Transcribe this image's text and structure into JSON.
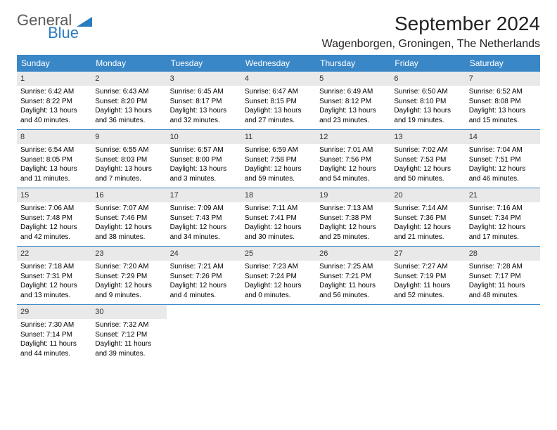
{
  "brand": {
    "text1": "General",
    "text2": "Blue"
  },
  "title": {
    "month": "September 2024",
    "location": "Wagenborgen, Groningen, The Netherlands"
  },
  "colors": {
    "header_bg": "#3a87c7",
    "header_fg": "#ffffff",
    "daynum_bg": "#e9e9e9",
    "rule": "#3a87c7",
    "logo_gray": "#5a5a5a",
    "logo_blue": "#2a7bbf"
  },
  "day_headers": [
    "Sunday",
    "Monday",
    "Tuesday",
    "Wednesday",
    "Thursday",
    "Friday",
    "Saturday"
  ],
  "weeks": [
    [
      {
        "n": "1",
        "sr": "Sunrise: 6:42 AM",
        "ss": "Sunset: 8:22 PM",
        "d1": "Daylight: 13 hours",
        "d2": "and 40 minutes."
      },
      {
        "n": "2",
        "sr": "Sunrise: 6:43 AM",
        "ss": "Sunset: 8:20 PM",
        "d1": "Daylight: 13 hours",
        "d2": "and 36 minutes."
      },
      {
        "n": "3",
        "sr": "Sunrise: 6:45 AM",
        "ss": "Sunset: 8:17 PM",
        "d1": "Daylight: 13 hours",
        "d2": "and 32 minutes."
      },
      {
        "n": "4",
        "sr": "Sunrise: 6:47 AM",
        "ss": "Sunset: 8:15 PM",
        "d1": "Daylight: 13 hours",
        "d2": "and 27 minutes."
      },
      {
        "n": "5",
        "sr": "Sunrise: 6:49 AM",
        "ss": "Sunset: 8:12 PM",
        "d1": "Daylight: 13 hours",
        "d2": "and 23 minutes."
      },
      {
        "n": "6",
        "sr": "Sunrise: 6:50 AM",
        "ss": "Sunset: 8:10 PM",
        "d1": "Daylight: 13 hours",
        "d2": "and 19 minutes."
      },
      {
        "n": "7",
        "sr": "Sunrise: 6:52 AM",
        "ss": "Sunset: 8:08 PM",
        "d1": "Daylight: 13 hours",
        "d2": "and 15 minutes."
      }
    ],
    [
      {
        "n": "8",
        "sr": "Sunrise: 6:54 AM",
        "ss": "Sunset: 8:05 PM",
        "d1": "Daylight: 13 hours",
        "d2": "and 11 minutes."
      },
      {
        "n": "9",
        "sr": "Sunrise: 6:55 AM",
        "ss": "Sunset: 8:03 PM",
        "d1": "Daylight: 13 hours",
        "d2": "and 7 minutes."
      },
      {
        "n": "10",
        "sr": "Sunrise: 6:57 AM",
        "ss": "Sunset: 8:00 PM",
        "d1": "Daylight: 13 hours",
        "d2": "and 3 minutes."
      },
      {
        "n": "11",
        "sr": "Sunrise: 6:59 AM",
        "ss": "Sunset: 7:58 PM",
        "d1": "Daylight: 12 hours",
        "d2": "and 59 minutes."
      },
      {
        "n": "12",
        "sr": "Sunrise: 7:01 AM",
        "ss": "Sunset: 7:56 PM",
        "d1": "Daylight: 12 hours",
        "d2": "and 54 minutes."
      },
      {
        "n": "13",
        "sr": "Sunrise: 7:02 AM",
        "ss": "Sunset: 7:53 PM",
        "d1": "Daylight: 12 hours",
        "d2": "and 50 minutes."
      },
      {
        "n": "14",
        "sr": "Sunrise: 7:04 AM",
        "ss": "Sunset: 7:51 PM",
        "d1": "Daylight: 12 hours",
        "d2": "and 46 minutes."
      }
    ],
    [
      {
        "n": "15",
        "sr": "Sunrise: 7:06 AM",
        "ss": "Sunset: 7:48 PM",
        "d1": "Daylight: 12 hours",
        "d2": "and 42 minutes."
      },
      {
        "n": "16",
        "sr": "Sunrise: 7:07 AM",
        "ss": "Sunset: 7:46 PM",
        "d1": "Daylight: 12 hours",
        "d2": "and 38 minutes."
      },
      {
        "n": "17",
        "sr": "Sunrise: 7:09 AM",
        "ss": "Sunset: 7:43 PM",
        "d1": "Daylight: 12 hours",
        "d2": "and 34 minutes."
      },
      {
        "n": "18",
        "sr": "Sunrise: 7:11 AM",
        "ss": "Sunset: 7:41 PM",
        "d1": "Daylight: 12 hours",
        "d2": "and 30 minutes."
      },
      {
        "n": "19",
        "sr": "Sunrise: 7:13 AM",
        "ss": "Sunset: 7:38 PM",
        "d1": "Daylight: 12 hours",
        "d2": "and 25 minutes."
      },
      {
        "n": "20",
        "sr": "Sunrise: 7:14 AM",
        "ss": "Sunset: 7:36 PM",
        "d1": "Daylight: 12 hours",
        "d2": "and 21 minutes."
      },
      {
        "n": "21",
        "sr": "Sunrise: 7:16 AM",
        "ss": "Sunset: 7:34 PM",
        "d1": "Daylight: 12 hours",
        "d2": "and 17 minutes."
      }
    ],
    [
      {
        "n": "22",
        "sr": "Sunrise: 7:18 AM",
        "ss": "Sunset: 7:31 PM",
        "d1": "Daylight: 12 hours",
        "d2": "and 13 minutes."
      },
      {
        "n": "23",
        "sr": "Sunrise: 7:20 AM",
        "ss": "Sunset: 7:29 PM",
        "d1": "Daylight: 12 hours",
        "d2": "and 9 minutes."
      },
      {
        "n": "24",
        "sr": "Sunrise: 7:21 AM",
        "ss": "Sunset: 7:26 PM",
        "d1": "Daylight: 12 hours",
        "d2": "and 4 minutes."
      },
      {
        "n": "25",
        "sr": "Sunrise: 7:23 AM",
        "ss": "Sunset: 7:24 PM",
        "d1": "Daylight: 12 hours",
        "d2": "and 0 minutes."
      },
      {
        "n": "26",
        "sr": "Sunrise: 7:25 AM",
        "ss": "Sunset: 7:21 PM",
        "d1": "Daylight: 11 hours",
        "d2": "and 56 minutes."
      },
      {
        "n": "27",
        "sr": "Sunrise: 7:27 AM",
        "ss": "Sunset: 7:19 PM",
        "d1": "Daylight: 11 hours",
        "d2": "and 52 minutes."
      },
      {
        "n": "28",
        "sr": "Sunrise: 7:28 AM",
        "ss": "Sunset: 7:17 PM",
        "d1": "Daylight: 11 hours",
        "d2": "and 48 minutes."
      }
    ],
    [
      {
        "n": "29",
        "sr": "Sunrise: 7:30 AM",
        "ss": "Sunset: 7:14 PM",
        "d1": "Daylight: 11 hours",
        "d2": "and 44 minutes."
      },
      {
        "n": "30",
        "sr": "Sunrise: 7:32 AM",
        "ss": "Sunset: 7:12 PM",
        "d1": "Daylight: 11 hours",
        "d2": "and 39 minutes."
      },
      {
        "n": "",
        "sr": "",
        "ss": "",
        "d1": "",
        "d2": ""
      },
      {
        "n": "",
        "sr": "",
        "ss": "",
        "d1": "",
        "d2": ""
      },
      {
        "n": "",
        "sr": "",
        "ss": "",
        "d1": "",
        "d2": ""
      },
      {
        "n": "",
        "sr": "",
        "ss": "",
        "d1": "",
        "d2": ""
      },
      {
        "n": "",
        "sr": "",
        "ss": "",
        "d1": "",
        "d2": ""
      }
    ]
  ]
}
